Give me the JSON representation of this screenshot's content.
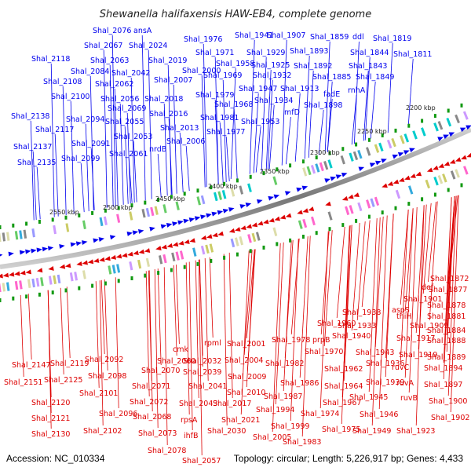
{
  "title": "Shewanella halifaxensis HAW-EB4, complete genome",
  "footer": {
    "accession": "Accession: NC_010334",
    "summary": "Topology: circular; Length: 5,226,917 bp; Genes: 4,433"
  },
  "colors": {
    "forward_strand": "#0000ee",
    "reverse_strand": "#dd0000",
    "backbone": "#888888",
    "tick_marks": "#119911"
  },
  "scale_ticks": [
    "2550 kbp",
    "2500 kbp",
    "2450 kbp",
    "2400 kbp",
    "2350 kbp",
    "2300 kbp",
    "2250 kbp",
    "2200 kbp"
  ],
  "top_labels": [
    "Shal_2076",
    "ansA",
    "Shal_2067",
    "Shal_2024",
    "Shal_2118",
    "Shal_2063",
    "Shal_2019",
    "Shal_2084",
    "Shal_2042",
    "Shal_2000",
    "Shal_2108",
    "Shal_2062",
    "Shal_2007",
    "Shal_2100",
    "Shal_2056",
    "Shal_2018",
    "Shal_2069",
    "Shal_2138",
    "Shal_2094",
    "Shal_2055",
    "Shal_2016",
    "Shal_2117",
    "Shal_2013",
    "Shal_2091",
    "Shal_2053",
    "Shal_2006",
    "Shal_2137",
    "Shal_2061",
    "nrdB",
    "Shal_2099",
    "Shal_2135",
    "Shal_1976",
    "Shal_1941",
    "Shal_1907",
    "Shal_1859",
    "ddl",
    "Shal_1819",
    "Shal_1971",
    "Shal_1929",
    "Shal_1893",
    "Shal_1844",
    "Shal_1811",
    "Shal_1958",
    "Shal_1925",
    "Shal_1892",
    "Shal_1843",
    "Shal_1969",
    "Shal_1932",
    "Shal_1885",
    "Shal_1849",
    "Shal_1947",
    "Shal_1913",
    "fadE",
    "Shal_1979",
    "Shal_1934",
    "rnhA",
    "Shal_1968",
    "Shal_1898",
    "Shal_1981",
    "mfD",
    "Shal_1953",
    "Shal_1977"
  ],
  "bottom_labels": [
    "Shal_1872",
    "Shal_1877",
    "def",
    "Shal_1901",
    "Shal_1878",
    "aspS",
    "Shal_1938",
    "thiH",
    "Shal_1881",
    "Shal_1960",
    "Shal_1933",
    "Shal_1909",
    "Shal_1884",
    "Shal_1940",
    "Shal_1917",
    "Shal_1888",
    "prpB",
    "Shal_1978",
    "Shal_1943",
    "Shal_1889",
    "cmk",
    "rpml",
    "Shal_2001",
    "Shal_1970",
    "Shal_1919",
    "Shal_2060",
    "Shal_2032",
    "Shal_1982",
    "Shal_1962",
    "Shal_1936",
    "ruvC",
    "Shal_1894",
    "Shal_2147",
    "Shal_2119",
    "Shal_2092",
    "Shal_2070",
    "Shal_2039",
    "Shal_2004",
    "Shal_2009",
    "Shal_1939",
    "ruvA",
    "Shal_2151",
    "Shal_2125",
    "Shal_2098",
    "Shal_2071",
    "Shal_2041",
    "Shal_1986",
    "Shal_1964",
    "Shal_1897",
    "Shal_2101",
    "Shal_2010",
    "Shal_1987",
    "Shal_1945",
    "ruvB",
    "Shal_1900",
    "Shal_2120",
    "Shal_2072",
    "Shal_2043",
    "Shal_2017",
    "Shal_1994",
    "Shal_1967",
    "Shal_2096",
    "Shal_2068",
    "Shal_1974",
    "Shal_1946",
    "Shal_1902",
    "Shal_2121",
    "rpsA",
    "Shal_2021",
    "Shal_1999",
    "Shal_2102",
    "ihfB",
    "Shal_2030",
    "Shal_1975",
    "Shal_1949",
    "Shal_1923",
    "Shal_2130",
    "Shal_2073",
    "Shal_2005",
    "Shal_1983",
    "Shal_2078",
    "Shal_2057"
  ]
}
